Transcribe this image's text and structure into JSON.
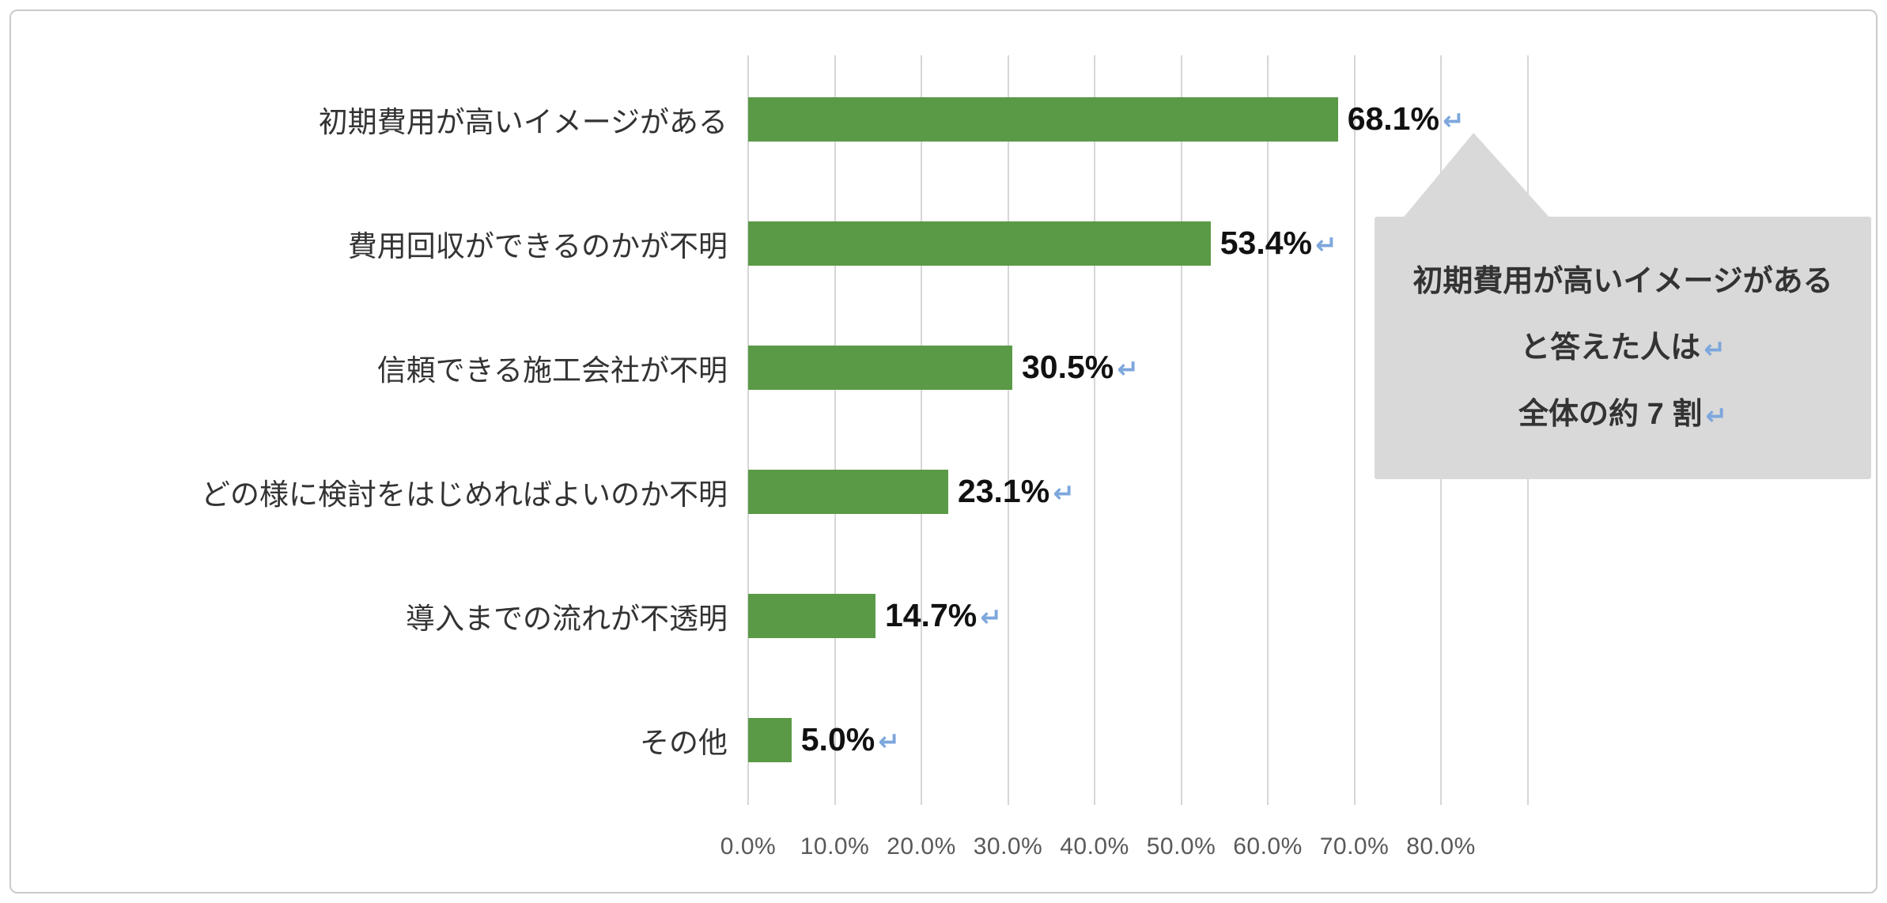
{
  "panel": {
    "background": "#ffffff",
    "border_color": "#cbcbcb"
  },
  "chart_data": {
    "type": "bar",
    "orientation": "horizontal",
    "title": "",
    "xlabel": "",
    "ylabel": "",
    "categories": [
      "初期費用が高いイメージがある",
      "費用回収ができるのかが不明",
      "信頼できる施工会社が不明",
      "どの様に検討をはじめればよいのか不明",
      "導入までの流れが不透明",
      "その他"
    ],
    "values": [
      68.1,
      53.4,
      30.5,
      23.1,
      14.7,
      5.0
    ],
    "value_labels": [
      "68.1%",
      "53.4%",
      "30.5%",
      "23.1%",
      "14.7%",
      "5.0%"
    ],
    "x_ticks": [
      "0.0%",
      "10.0%",
      "20.0%",
      "30.0%",
      "40.0%",
      "50.0%",
      "60.0%",
      "70.0%",
      "80.0%"
    ],
    "xlim": [
      0,
      90
    ],
    "grid": true,
    "legend": "none",
    "bar_color": "#5a9a46",
    "gridline_color": "#d6d6d6",
    "value_label_color": "#111111",
    "tick_label_color": "#595959"
  },
  "callout": {
    "lines": [
      "初期費用が高いイメージがある",
      "と答えた人は",
      "全体の約 7 割"
    ],
    "line_ret": [
      false,
      true,
      true
    ],
    "background": "#d9d9d9",
    "text_color": "#333333"
  },
  "marks": {
    "return_symbol": "↵",
    "color": "#7da7dc"
  }
}
